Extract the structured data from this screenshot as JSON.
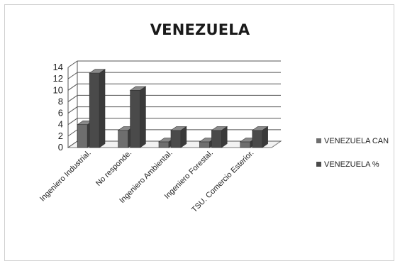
{
  "chart_data": {
    "type": "bar",
    "title": "VENEZUELA",
    "xlabel": "",
    "ylabel": "",
    "categories": [
      "Ingeniero Industrial.",
      "No responde.",
      "Ingeniero Ambiental.",
      "Ingeniero Forestal.",
      "TSU. Comercio Esterior."
    ],
    "series": [
      {
        "name": "VENEZUELA CAN",
        "values": [
          4,
          3,
          1,
          1,
          1
        ],
        "color": "#6e6e6e"
      },
      {
        "name": "VENEZUELA %",
        "values": [
          13,
          10,
          3,
          3,
          3
        ],
        "color": "#4a4a4a"
      }
    ],
    "ylim": [
      0,
      14
    ],
    "yticks": [
      0,
      2,
      4,
      6,
      8,
      10,
      12,
      14
    ],
    "grid": true,
    "three_d": true,
    "legend_position": "right"
  }
}
